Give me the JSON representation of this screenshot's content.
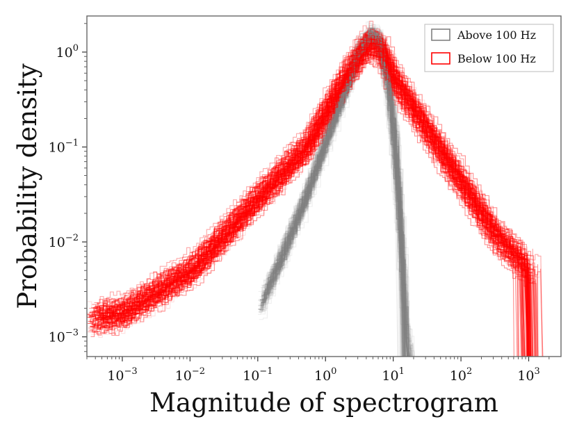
{
  "chart_data": {
    "type": "histogram-step-loglog",
    "title": "",
    "xlabel": "Magnitude of spectrogram",
    "ylabel": "Probability density",
    "xscale": "log",
    "yscale": "log",
    "xlim": [
      0.0003,
      3000
    ],
    "ylim": [
      0.00062,
      2.4
    ],
    "x_ticks": [
      {
        "base": "10",
        "exp": "−3",
        "value": 0.001
      },
      {
        "base": "10",
        "exp": "−2",
        "value": 0.01
      },
      {
        "base": "10",
        "exp": "−1",
        "value": 0.1
      },
      {
        "base": "10",
        "exp": "0",
        "value": 1
      },
      {
        "base": "10",
        "exp": "1",
        "value": 10
      },
      {
        "base": "10",
        "exp": "2",
        "value": 100
      },
      {
        "base": "10",
        "exp": "3",
        "value": 1000
      }
    ],
    "y_ticks": [
      {
        "base": "10",
        "exp": "−3",
        "value": 0.001
      },
      {
        "base": "10",
        "exp": "−2",
        "value": 0.01
      },
      {
        "base": "10",
        "exp": "−1",
        "value": 0.1
      },
      {
        "base": "10",
        "exp": "0",
        "value": 1
      }
    ],
    "legend_position": "top-right",
    "series": [
      {
        "name": "Above 100 Hz",
        "color": "#808080",
        "approx_envelope": {
          "x": [
            0.1,
            0.2,
            0.5,
            1,
            2,
            3,
            4.5,
            6,
            8,
            10,
            12,
            14,
            16
          ],
          "y": [
            0.002,
            0.006,
            0.03,
            0.12,
            0.45,
            1.0,
            1.5,
            1.3,
            0.5,
            0.12,
            0.02,
            0.003,
            0.0008
          ]
        }
      },
      {
        "name": "Below 100 Hz",
        "color": "#ff0000",
        "approx_envelope": {
          "x": [
            0.0003,
            0.001,
            0.01,
            0.1,
            0.5,
            1,
            2,
            4,
            6,
            10,
            30,
            100,
            300,
            1000
          ],
          "y": [
            0.0015,
            0.0018,
            0.005,
            0.03,
            0.1,
            0.25,
            0.6,
            1.2,
            1.1,
            0.5,
            0.15,
            0.04,
            0.012,
            0.005
          ]
        }
      }
    ]
  }
}
